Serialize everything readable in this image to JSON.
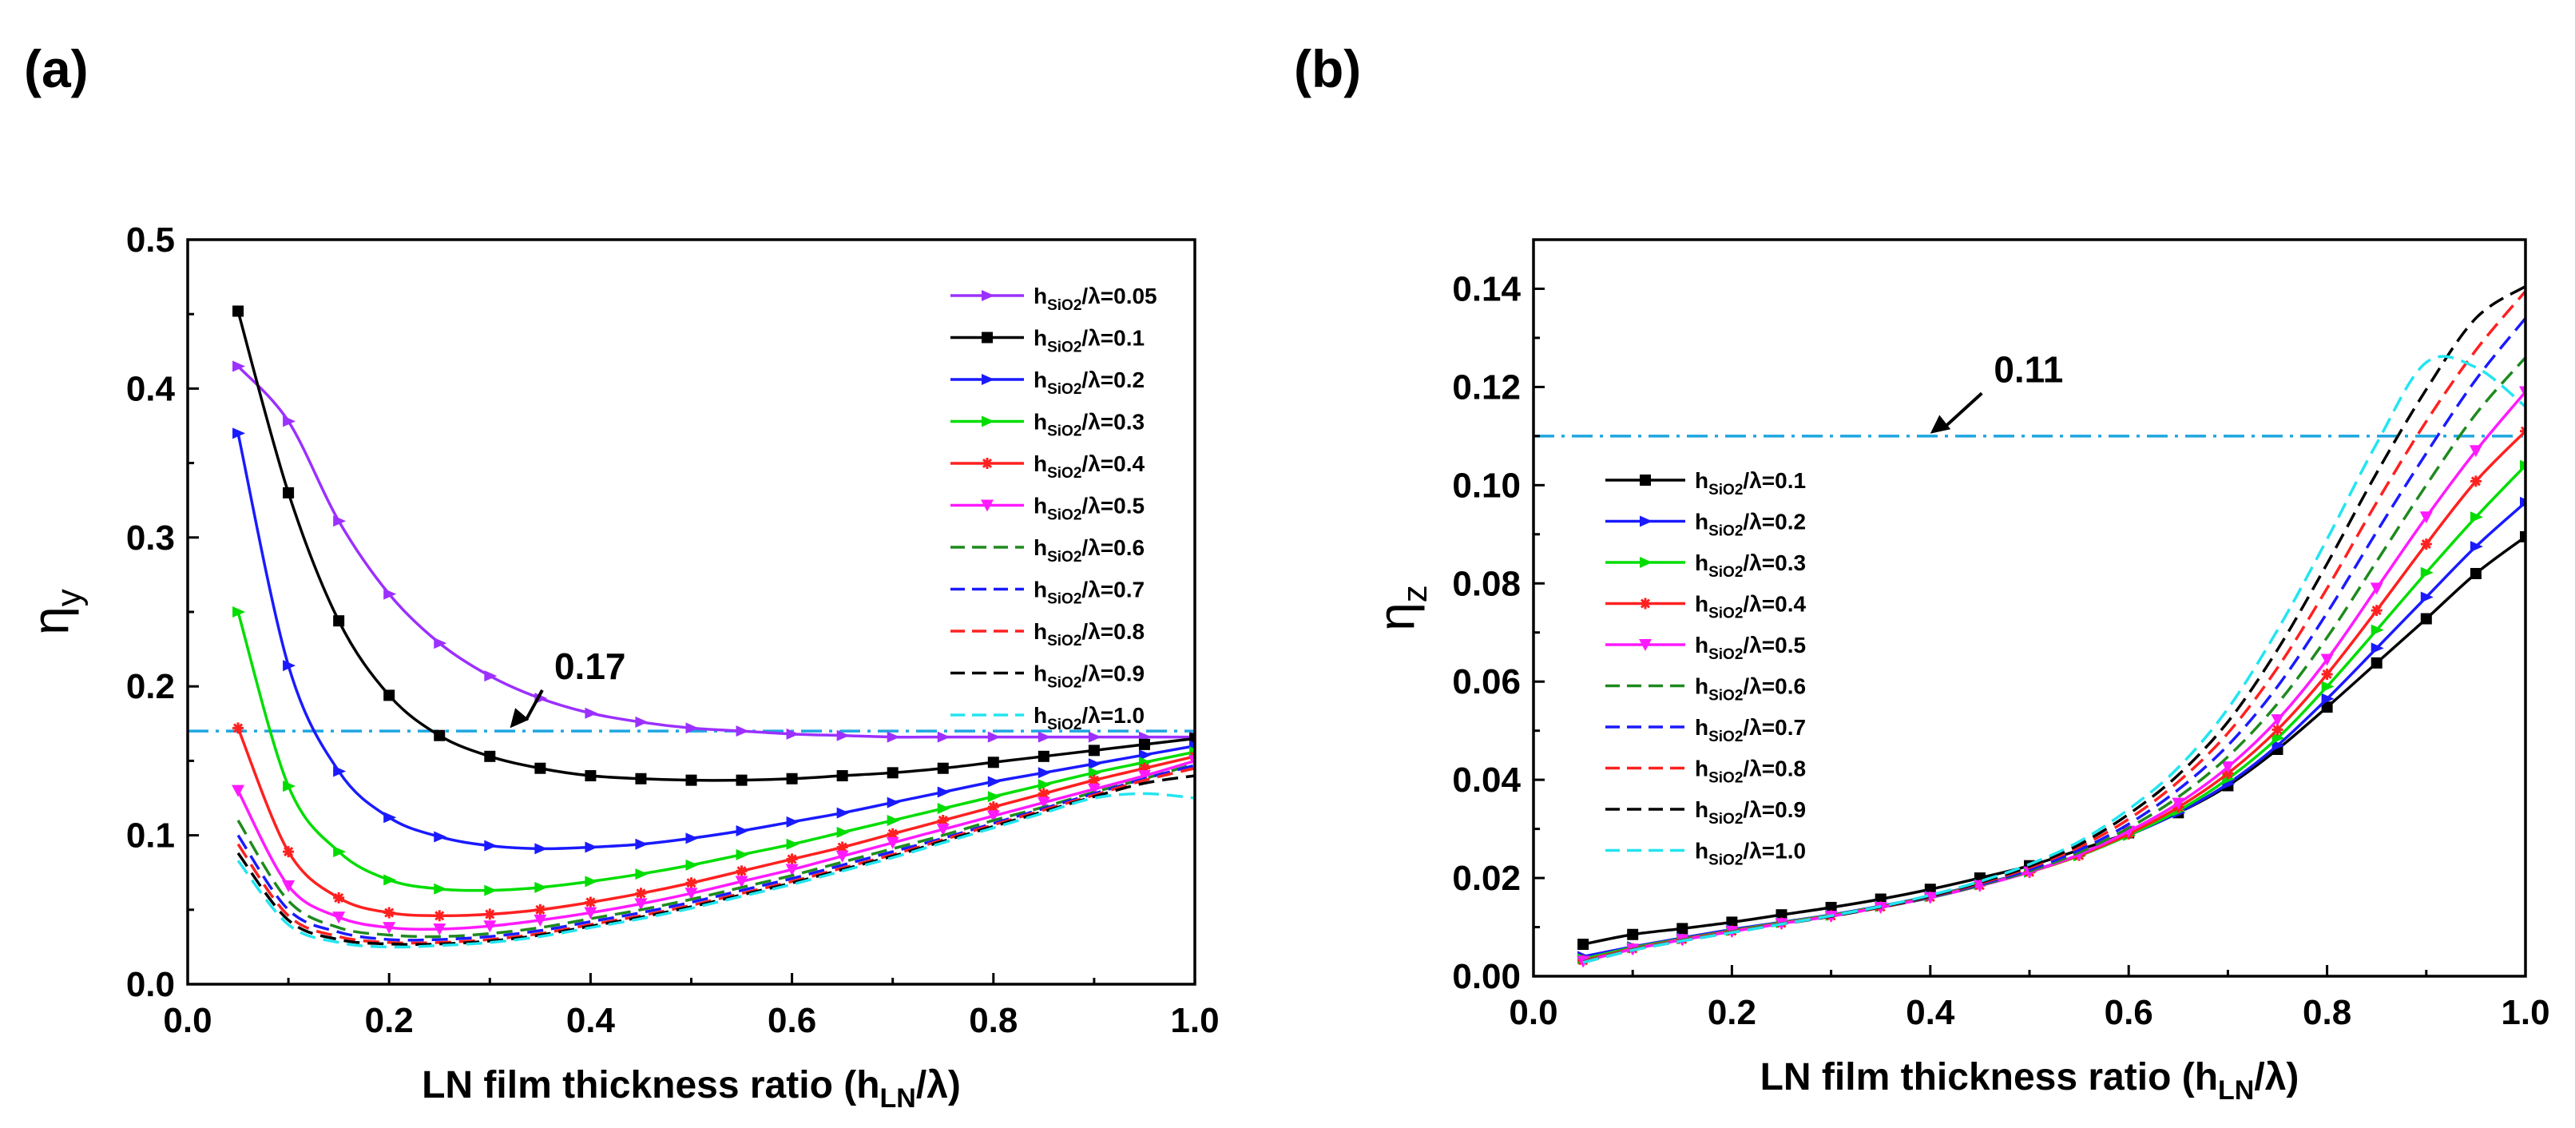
{
  "panel_labels": {
    "a": "(a)",
    "b": "(b)"
  },
  "chart_data": [
    {
      "type": "line",
      "panel": "(a)",
      "title": "",
      "xlabel": "LN film thickness ratio",
      "xlabel_math": "(h",
      "xlabel_sub": "LN",
      "xlabel_tail": "/λ)",
      "ylabel": "η",
      "ylabel_sub": "y",
      "xlim": [
        0.0,
        1.0
      ],
      "ylim": [
        0.0,
        0.5
      ],
      "xticks": [
        "0.0",
        "0.2",
        "0.4",
        "0.6",
        "0.8",
        "1.0"
      ],
      "xtick_values": [
        0.0,
        0.2,
        0.4,
        0.6,
        0.8,
        1.0
      ],
      "yticks": [
        "0.0",
        "0.1",
        "0.2",
        "0.3",
        "0.4",
        "0.5"
      ],
      "ytick_values": [
        0.0,
        0.1,
        0.2,
        0.3,
        0.4,
        0.5
      ],
      "legend_position": "top-right",
      "reference_line": {
        "y": 0.17,
        "color": "#1fa6e0",
        "style": "dash-dot"
      },
      "annotation": {
        "text": "0.17",
        "x_text": 0.36,
        "y_text": 0.205,
        "x_arrow": 0.32,
        "y_arrow": 0.172
      },
      "x": [
        0.05,
        0.1,
        0.15,
        0.2,
        0.25,
        0.3,
        0.35,
        0.4,
        0.45,
        0.5,
        0.55,
        0.6,
        0.65,
        0.7,
        0.75,
        0.8,
        0.85,
        0.9,
        0.95,
        1.0
      ],
      "series": [
        {
          "name": "h_SiO2/λ=0.05",
          "label_pre": "h",
          "label_sub": "SiO2",
          "label_post": "/λ=0.05",
          "color": "#9b30ff",
          "dashed": false,
          "marker": "tri",
          "values": [
            0.415,
            0.378,
            0.311,
            0.262,
            0.229,
            0.207,
            0.192,
            0.182,
            0.176,
            0.172,
            0.17,
            0.168,
            0.167,
            0.166,
            0.166,
            0.166,
            0.166,
            0.166,
            0.166,
            0.166
          ]
        },
        {
          "name": "h_SiO2/λ=0.1",
          "label_pre": "h",
          "label_sub": "SiO2",
          "label_post": "/λ=0.1",
          "color": "#000000",
          "dashed": false,
          "marker": "square",
          "values": [
            0.452,
            0.33,
            0.244,
            0.194,
            0.167,
            0.153,
            0.145,
            0.14,
            0.138,
            0.137,
            0.137,
            0.138,
            0.14,
            0.142,
            0.145,
            0.149,
            0.153,
            0.157,
            0.161,
            0.165
          ]
        },
        {
          "name": "h_SiO2/λ=0.2",
          "label_pre": "h",
          "label_sub": "SiO2",
          "label_post": "/λ=0.2",
          "color": "#1a1aff",
          "dashed": false,
          "marker": "tri",
          "values": [
            0.37,
            0.214,
            0.143,
            0.112,
            0.099,
            0.093,
            0.091,
            0.092,
            0.094,
            0.098,
            0.103,
            0.109,
            0.115,
            0.122,
            0.129,
            0.136,
            0.142,
            0.148,
            0.154,
            0.16
          ]
        },
        {
          "name": "h_SiO2/λ=0.3",
          "label_pre": "h",
          "label_sub": "SiO2",
          "label_post": "/λ=0.3",
          "color": "#00dd00",
          "dashed": false,
          "marker": "tri",
          "values": [
            0.25,
            0.133,
            0.089,
            0.07,
            0.064,
            0.063,
            0.065,
            0.069,
            0.074,
            0.08,
            0.087,
            0.094,
            0.102,
            0.11,
            0.118,
            0.126,
            0.134,
            0.142,
            0.149,
            0.156
          ]
        },
        {
          "name": "h_SiO2/λ=0.4",
          "label_pre": "h",
          "label_sub": "SiO2",
          "label_post": "/λ=0.4",
          "color": "#ff2020",
          "dashed": false,
          "marker": "star",
          "values": [
            0.172,
            0.089,
            0.058,
            0.048,
            0.046,
            0.047,
            0.05,
            0.055,
            0.061,
            0.068,
            0.076,
            0.084,
            0.092,
            0.101,
            0.11,
            0.119,
            0.128,
            0.137,
            0.145,
            0.153
          ]
        },
        {
          "name": "h_SiO2/λ=0.5",
          "label_pre": "h",
          "label_sub": "SiO2",
          "label_post": "/λ=0.5",
          "color": "#ff1aff",
          "dashed": false,
          "marker": "tri-down",
          "values": [
            0.13,
            0.066,
            0.045,
            0.038,
            0.037,
            0.039,
            0.043,
            0.048,
            0.054,
            0.061,
            0.069,
            0.077,
            0.086,
            0.095,
            0.104,
            0.113,
            0.122,
            0.131,
            0.14,
            0.15
          ]
        },
        {
          "name": "h_SiO2/λ=0.6",
          "label_pre": "h",
          "label_sub": "SiO2",
          "label_post": "/λ=0.6",
          "color": "#1e8a1e",
          "dashed": true,
          "marker": "none",
          "values": [
            0.11,
            0.056,
            0.038,
            0.033,
            0.032,
            0.034,
            0.038,
            0.044,
            0.05,
            0.057,
            0.065,
            0.073,
            0.082,
            0.091,
            0.1,
            0.11,
            0.119,
            0.129,
            0.138,
            0.148
          ]
        },
        {
          "name": "h_SiO2/λ=0.7",
          "label_pre": "h",
          "label_sub": "SiO2",
          "label_post": "/λ=0.7",
          "color": "#1a1aff",
          "dashed": true,
          "marker": "none",
          "values": [
            0.1,
            0.05,
            0.035,
            0.03,
            0.03,
            0.032,
            0.036,
            0.042,
            0.048,
            0.055,
            0.063,
            0.071,
            0.08,
            0.089,
            0.098,
            0.108,
            0.118,
            0.128,
            0.138,
            0.147
          ]
        },
        {
          "name": "h_SiO2/λ=0.8",
          "label_pre": "h",
          "label_sub": "SiO2",
          "label_post": "/λ=0.8",
          "color": "#ff2020",
          "dashed": true,
          "marker": "none",
          "values": [
            0.094,
            0.046,
            0.032,
            0.028,
            0.028,
            0.03,
            0.034,
            0.04,
            0.046,
            0.053,
            0.061,
            0.069,
            0.078,
            0.087,
            0.097,
            0.107,
            0.117,
            0.127,
            0.137,
            0.145
          ]
        },
        {
          "name": "h_SiO2/λ=0.9",
          "label_pre": "h",
          "label_sub": "SiO2",
          "label_post": "/λ=0.9",
          "color": "#000000",
          "dashed": true,
          "marker": "none",
          "values": [
            0.088,
            0.043,
            0.03,
            0.027,
            0.027,
            0.029,
            0.033,
            0.039,
            0.045,
            0.052,
            0.06,
            0.068,
            0.077,
            0.086,
            0.096,
            0.106,
            0.116,
            0.126,
            0.135,
            0.14
          ]
        },
        {
          "name": "h_SiO2/λ=1.0",
          "label_pre": "h",
          "label_sub": "SiO2",
          "label_post": "/λ=1.0",
          "color": "#22e5f0",
          "dashed": true,
          "marker": "none",
          "values": [
            0.083,
            0.04,
            0.028,
            0.025,
            0.026,
            0.028,
            0.032,
            0.038,
            0.044,
            0.051,
            0.059,
            0.067,
            0.076,
            0.085,
            0.095,
            0.105,
            0.115,
            0.125,
            0.128,
            0.125
          ]
        }
      ]
    },
    {
      "type": "line",
      "panel": "(b)",
      "title": "",
      "xlabel": "LN film thickness ratio",
      "xlabel_math": "(h",
      "xlabel_sub": "LN",
      "xlabel_tail": "/λ)",
      "ylabel": "η",
      "ylabel_sub": "z",
      "xlim": [
        0.0,
        1.0
      ],
      "ylim": [
        0.0,
        0.15
      ],
      "xticks": [
        "0.0",
        "0.2",
        "0.4",
        "0.6",
        "0.8",
        "1.0"
      ],
      "xtick_values": [
        0.0,
        0.2,
        0.4,
        0.6,
        0.8,
        1.0
      ],
      "yticks": [
        "0.00",
        "0.02",
        "0.04",
        "0.06",
        "0.08",
        "0.10",
        "0.12",
        "0.14"
      ],
      "ytick_values": [
        0.0,
        0.02,
        0.04,
        0.06,
        0.08,
        0.1,
        0.12,
        0.14
      ],
      "legend_position": "center-left",
      "reference_line": {
        "y": 0.11,
        "color": "#1fa6e0",
        "style": "dash-dot"
      },
      "annotation": {
        "text": "0.11",
        "x_text": 0.46,
        "y_text": 0.121,
        "x_arrow": 0.4,
        "y_arrow": 0.1105
      },
      "x": [
        0.05,
        0.1,
        0.15,
        0.2,
        0.25,
        0.3,
        0.35,
        0.4,
        0.45,
        0.5,
        0.55,
        0.6,
        0.65,
        0.7,
        0.75,
        0.8,
        0.85,
        0.9,
        0.95,
        1.0
      ],
      "series": [
        {
          "name": "h_SiO2/λ=0.1",
          "label_pre": "h",
          "label_sub": "SiO2",
          "label_post": "/λ=0.1",
          "color": "#000000",
          "dashed": false,
          "marker": "square",
          "values": [
            0.0065,
            0.0085,
            0.0097,
            0.011,
            0.0125,
            0.014,
            0.0157,
            0.0177,
            0.02,
            0.0225,
            0.0257,
            0.0292,
            0.0333,
            0.0388,
            0.0462,
            0.0548,
            0.0638,
            0.0728,
            0.082,
            0.0895
          ]
        },
        {
          "name": "h_SiO2/λ=0.2",
          "label_pre": "h",
          "label_sub": "SiO2",
          "label_post": "/λ=0.2",
          "color": "#1a1aff",
          "dashed": false,
          "marker": "tri",
          "values": [
            0.004,
            0.006,
            0.0078,
            0.0095,
            0.011,
            0.0125,
            0.0143,
            0.0163,
            0.0187,
            0.0213,
            0.0247,
            0.0287,
            0.0333,
            0.0392,
            0.047,
            0.0565,
            0.0668,
            0.0772,
            0.0875,
            0.0965
          ]
        },
        {
          "name": "h_SiO2/λ=0.3",
          "label_pre": "h",
          "label_sub": "SiO2",
          "label_post": "/λ=0.3",
          "color": "#00dd00",
          "dashed": false,
          "marker": "tri",
          "values": [
            0.0035,
            0.0058,
            0.0076,
            0.0093,
            0.0109,
            0.0124,
            0.0142,
            0.0162,
            0.0186,
            0.0212,
            0.0245,
            0.0287,
            0.0337,
            0.0402,
            0.0485,
            0.059,
            0.0705,
            0.0822,
            0.0935,
            0.104
          ]
        },
        {
          "name": "h_SiO2/λ=0.4",
          "label_pre": "h",
          "label_sub": "SiO2",
          "label_post": "/λ=0.4",
          "color": "#ff2020",
          "dashed": false,
          "marker": "star",
          "values": [
            0.0032,
            0.0056,
            0.0075,
            0.0092,
            0.0108,
            0.0123,
            0.0141,
            0.0161,
            0.0185,
            0.0212,
            0.0246,
            0.029,
            0.0344,
            0.0413,
            0.0502,
            0.0615,
            0.0745,
            0.088,
            0.1008,
            0.111
          ]
        },
        {
          "name": "h_SiO2/λ=0.5",
          "label_pre": "h",
          "label_sub": "SiO2",
          "label_post": "/λ=0.5",
          "color": "#ff1aff",
          "dashed": false,
          "marker": "tri-down",
          "values": [
            0.003,
            0.0055,
            0.0074,
            0.0091,
            0.0107,
            0.0122,
            0.014,
            0.016,
            0.0184,
            0.0212,
            0.0248,
            0.0295,
            0.0352,
            0.0426,
            0.0522,
            0.0645,
            0.079,
            0.0935,
            0.107,
            0.119
          ]
        },
        {
          "name": "h_SiO2/λ=0.6",
          "label_pre": "h",
          "label_sub": "SiO2",
          "label_post": "/λ=0.6",
          "color": "#1e8a1e",
          "dashed": true,
          "marker": "none",
          "values": [
            0.003,
            0.0055,
            0.0074,
            0.0091,
            0.0107,
            0.0122,
            0.014,
            0.016,
            0.0185,
            0.0214,
            0.0252,
            0.0302,
            0.0365,
            0.0447,
            0.0555,
            0.069,
            0.0845,
            0.1,
            0.1145,
            0.126
          ]
        },
        {
          "name": "h_SiO2/λ=0.7",
          "label_pre": "h",
          "label_sub": "SiO2",
          "label_post": "/λ=0.7",
          "color": "#1a1aff",
          "dashed": true,
          "marker": "none",
          "values": [
            0.0029,
            0.0054,
            0.0073,
            0.009,
            0.0106,
            0.0122,
            0.014,
            0.0161,
            0.0187,
            0.0217,
            0.0257,
            0.031,
            0.038,
            0.047,
            0.059,
            0.074,
            0.0905,
            0.1065,
            0.1215,
            0.134
          ]
        },
        {
          "name": "h_SiO2/λ=0.8",
          "label_pre": "h",
          "label_sub": "SiO2",
          "label_post": "/λ=0.8",
          "color": "#ff2020",
          "dashed": true,
          "marker": "none",
          "values": [
            0.0029,
            0.0054,
            0.0073,
            0.009,
            0.0106,
            0.0122,
            0.014,
            0.0162,
            0.0189,
            0.0221,
            0.0263,
            0.032,
            0.0396,
            0.0495,
            0.0628,
            0.079,
            0.0965,
            0.113,
            0.1275,
            0.1395
          ]
        },
        {
          "name": "h_SiO2/λ=0.9",
          "label_pre": "h",
          "label_sub": "SiO2",
          "label_post": "/λ=0.9",
          "color": "#000000",
          "dashed": true,
          "marker": "none",
          "values": [
            0.0028,
            0.0053,
            0.0072,
            0.0089,
            0.0106,
            0.0122,
            0.0141,
            0.0163,
            0.0191,
            0.0224,
            0.0268,
            0.033,
            0.041,
            0.0518,
            0.0665,
            0.084,
            0.1025,
            0.1195,
            0.134,
            0.1405
          ]
        },
        {
          "name": "h_SiO2/λ=1.0",
          "label_pre": "h",
          "label_sub": "SiO2",
          "label_post": "/λ=1.0",
          "color": "#22e5f0",
          "dashed": true,
          "marker": "none",
          "values": [
            0.0028,
            0.0053,
            0.0072,
            0.0089,
            0.0106,
            0.0123,
            0.0142,
            0.0165,
            0.0193,
            0.0228,
            0.0274,
            0.034,
            0.0425,
            0.0545,
            0.0705,
            0.089,
            0.1085,
            0.125,
            0.124,
            0.116
          ]
        }
      ]
    }
  ]
}
